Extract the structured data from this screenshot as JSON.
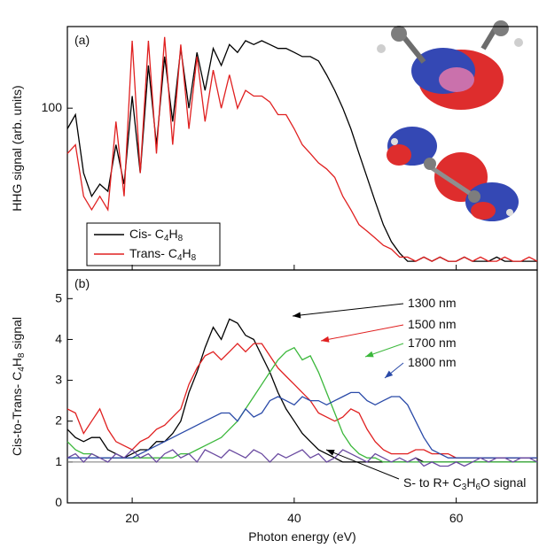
{
  "chart_data": [
    {
      "type": "line",
      "panel_label": "(a)",
      "ylabel": "HHG signal (arb. units)",
      "log_scale": true,
      "ylim": [
        28,
        190
      ],
      "yticks": [
        100
      ],
      "xlim": [
        12,
        70
      ],
      "x": [
        12,
        13,
        14,
        15,
        16,
        17,
        18,
        19,
        20,
        21,
        22,
        23,
        24,
        25,
        26,
        27,
        28,
        29,
        30,
        31,
        32,
        33,
        34,
        35,
        36,
        37,
        38,
        39,
        40,
        41,
        42,
        43,
        44,
        45,
        46,
        47,
        48,
        49,
        50,
        51,
        52,
        53,
        54,
        55,
        56,
        57,
        58,
        59,
        60,
        61,
        62,
        63,
        64,
        65,
        66,
        67,
        68,
        69,
        70
      ],
      "legend": "lower left",
      "series": [
        {
          "name": "Cis- C4H8",
          "color": "#000000",
          "values": [
            85,
            95,
            60,
            50,
            55,
            52,
            75,
            55,
            110,
            60,
            140,
            75,
            150,
            90,
            160,
            100,
            155,
            115,
            160,
            140,
            165,
            155,
            170,
            165,
            170,
            165,
            160,
            160,
            155,
            150,
            150,
            145,
            130,
            115,
            100,
            85,
            70,
            58,
            48,
            40,
            35,
            32,
            30,
            30,
            31,
            30,
            31,
            30,
            30,
            31,
            30,
            30,
            30,
            31,
            30,
            30,
            30,
            30,
            30
          ]
        },
        {
          "name": "Trans- C4H8",
          "color": "#e02020",
          "values": [
            70,
            75,
            50,
            45,
            50,
            45,
            90,
            50,
            170,
            60,
            170,
            70,
            175,
            75,
            165,
            85,
            150,
            90,
            135,
            100,
            130,
            100,
            115,
            110,
            110,
            105,
            95,
            95,
            85,
            75,
            70,
            65,
            62,
            58,
            50,
            45,
            40,
            38,
            36,
            34,
            33,
            31,
            31,
            30,
            31,
            30,
            31,
            30,
            30,
            31,
            30,
            31,
            30,
            30,
            31,
            30,
            30,
            31,
            30
          ]
        }
      ]
    },
    {
      "type": "line",
      "panel_label": "(b)",
      "ylabel": "Cis-to-Trans- C4H8 signal",
      "xlabel": "Photon energy (eV)",
      "ylim": [
        0,
        5.7
      ],
      "yticks": [
        0,
        1,
        2,
        3,
        4,
        5
      ],
      "xlim": [
        12,
        70
      ],
      "xticks": [
        20,
        40,
        60
      ],
      "reference_line": 1,
      "x": [
        12,
        13,
        14,
        15,
        16,
        17,
        18,
        19,
        20,
        21,
        22,
        23,
        24,
        25,
        26,
        27,
        28,
        29,
        30,
        31,
        32,
        33,
        34,
        35,
        36,
        37,
        38,
        39,
        40,
        41,
        42,
        43,
        44,
        45,
        46,
        47,
        48,
        49,
        50,
        51,
        52,
        53,
        54,
        55,
        56,
        57,
        58,
        59,
        60,
        61,
        62,
        63,
        64,
        65,
        66,
        67,
        68,
        69,
        70
      ],
      "series": [
        {
          "name": "1300 nm",
          "color": "#000000",
          "values": [
            1.8,
            1.6,
            1.5,
            1.6,
            1.6,
            1.3,
            1.2,
            1.1,
            1.2,
            1.3,
            1.3,
            1.5,
            1.5,
            1.7,
            2.0,
            2.7,
            3.2,
            3.8,
            4.3,
            4.0,
            4.5,
            4.4,
            4.1,
            4.0,
            3.6,
            3.2,
            2.7,
            2.3,
            2.0,
            1.7,
            1.5,
            1.3,
            1.2,
            1.1,
            1.0,
            1.0,
            1.0,
            1.0,
            1.0,
            1.0,
            1.0,
            1.0,
            1.0,
            1.1,
            1.0,
            1.0,
            1.0,
            1.0,
            1.0,
            1.0,
            1.0,
            1.0,
            1.0,
            1.0,
            1.0,
            1.0,
            1.0,
            1.0,
            1.0
          ]
        },
        {
          "name": "1500 nm",
          "color": "#e02020",
          "values": [
            2.3,
            2.2,
            1.7,
            2.0,
            2.3,
            1.8,
            1.5,
            1.4,
            1.3,
            1.5,
            1.6,
            1.8,
            1.9,
            2.1,
            2.3,
            2.9,
            3.3,
            3.6,
            3.7,
            3.5,
            3.7,
            3.9,
            3.7,
            3.9,
            3.9,
            3.6,
            3.3,
            3.1,
            2.9,
            2.7,
            2.5,
            2.2,
            2.1,
            2.0,
            2.1,
            2.3,
            2.2,
            1.8,
            1.5,
            1.3,
            1.2,
            1.2,
            1.2,
            1.3,
            1.3,
            1.2,
            1.2,
            1.2,
            1.1,
            1.1,
            1.1,
            1.1,
            1.1,
            1.1,
            1.1,
            1.1,
            1.1,
            1.1,
            1.1
          ]
        },
        {
          "name": "1700 nm",
          "color": "#3cb83c",
          "values": [
            1.5,
            1.3,
            1.2,
            1.2,
            1.1,
            1.1,
            1.1,
            1.1,
            1.1,
            1.1,
            1.1,
            1.1,
            1.1,
            1.1,
            1.2,
            1.2,
            1.3,
            1.4,
            1.5,
            1.6,
            1.8,
            2.0,
            2.3,
            2.6,
            2.9,
            3.2,
            3.5,
            3.7,
            3.8,
            3.5,
            3.6,
            3.2,
            2.7,
            2.2,
            1.7,
            1.4,
            1.2,
            1.1,
            1.1,
            1.0,
            1.0,
            1.0,
            1.0,
            1.0,
            1.0,
            1.0,
            1.0,
            1.0,
            1.0,
            1.0,
            1.0,
            1.0,
            1.0,
            1.0,
            1.0,
            1.0,
            1.0,
            1.0,
            1.0
          ]
        },
        {
          "name": "1800 nm",
          "color": "#2a4aa8",
          "values": [
            1.1,
            1.1,
            1.1,
            1.1,
            1.1,
            1.1,
            1.1,
            1.1,
            1.1,
            1.2,
            1.3,
            1.4,
            1.5,
            1.6,
            1.7,
            1.8,
            1.9,
            2.0,
            2.1,
            2.2,
            2.2,
            2.0,
            2.3,
            2.1,
            2.2,
            2.5,
            2.6,
            2.5,
            2.4,
            2.6,
            2.5,
            2.5,
            2.4,
            2.5,
            2.6,
            2.7,
            2.7,
            2.5,
            2.4,
            2.5,
            2.6,
            2.6,
            2.4,
            2.0,
            1.6,
            1.3,
            1.2,
            1.1,
            1.1,
            1.1,
            1.1,
            1.1,
            1.1,
            1.1,
            1.1,
            1.1,
            1.1,
            1.1,
            1.1
          ]
        },
        {
          "name": "S- to R+ C3H6O signal",
          "color": "#6a4aa0",
          "values": [
            1.1,
            1.2,
            1.0,
            1.2,
            1.1,
            1.0,
            1.2,
            1.1,
            1.3,
            1.1,
            1.2,
            1.0,
            1.2,
            1.3,
            1.1,
            1.2,
            1.0,
            1.3,
            1.2,
            1.1,
            1.3,
            1.2,
            1.1,
            1.3,
            1.2,
            1.0,
            1.2,
            1.1,
            1.2,
            1.3,
            1.1,
            1.2,
            1.0,
            1.1,
            1.3,
            1.2,
            1.1,
            1.0,
            1.2,
            1.1,
            1.0,
            1.1,
            1.0,
            1.1,
            0.9,
            1.0,
            0.9,
            0.9,
            1.0,
            0.9,
            1.0,
            1.1,
            1.0,
            1.1,
            1.1,
            1.0,
            1.1,
            1.1,
            1.0
          ]
        }
      ]
    }
  ]
}
